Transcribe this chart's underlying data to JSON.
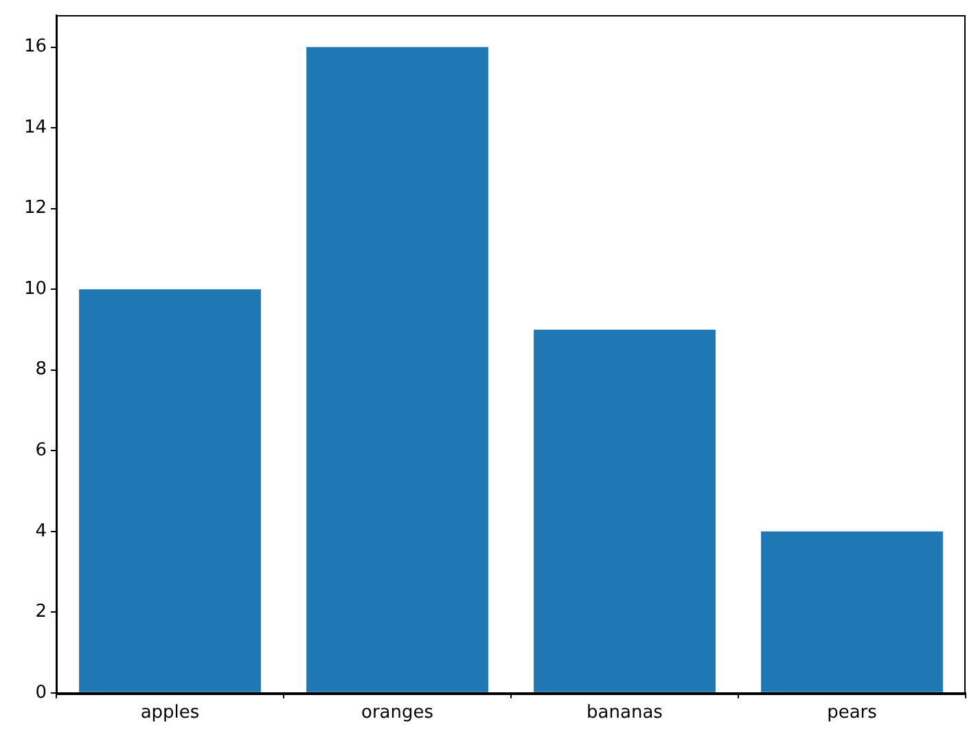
{
  "chart_data": {
    "type": "bar",
    "categories": [
      "apples",
      "oranges",
      "bananas",
      "pears"
    ],
    "values": [
      10,
      16,
      9,
      4
    ],
    "color": "#1f77b4",
    "ylim": [
      0,
      16.8
    ],
    "yticks": [
      0,
      2,
      4,
      6,
      8,
      10,
      12,
      14,
      16
    ]
  }
}
